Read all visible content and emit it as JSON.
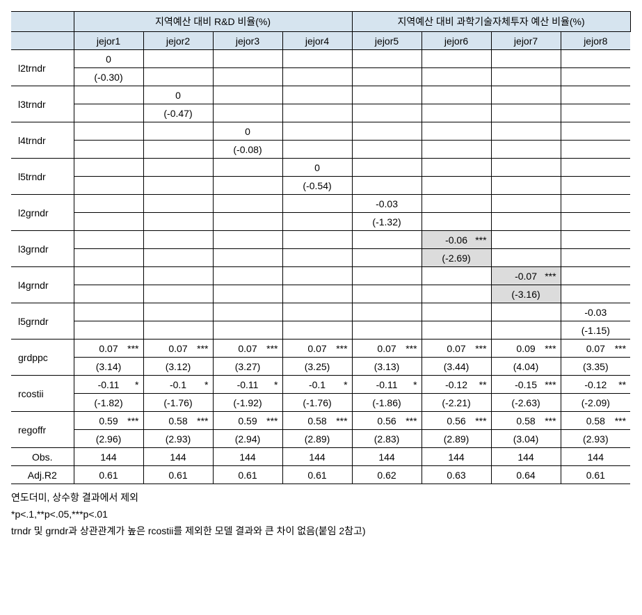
{
  "headers": {
    "group1": "지역예산 대비 R&D 비율(%)",
    "group2": "지역예산 대비 과학기술자체투자 예산 비율(%)",
    "cols": [
      "jejor1",
      "jejor2",
      "jejor3",
      "jejor4",
      "jejor5",
      "jejor6",
      "jejor7",
      "jejor8"
    ]
  },
  "rows": [
    {
      "label": "l2trndr",
      "cells": [
        {
          "v": "0",
          "t": "(-0.30)"
        },
        {},
        {},
        {},
        {},
        {},
        {},
        {}
      ]
    },
    {
      "label": "l3trndr",
      "cells": [
        {},
        {
          "v": "0",
          "t": "(-0.47)"
        },
        {},
        {},
        {},
        {},
        {},
        {}
      ]
    },
    {
      "label": "l4trndr",
      "cells": [
        {},
        {},
        {
          "v": "0",
          "t": "(-0.08)"
        },
        {},
        {},
        {},
        {},
        {}
      ]
    },
    {
      "label": "l5trndr",
      "cells": [
        {},
        {},
        {},
        {
          "v": "0",
          "t": "(-0.54)"
        },
        {},
        {},
        {},
        {}
      ]
    },
    {
      "label": "l2grndr",
      "cells": [
        {},
        {},
        {},
        {},
        {
          "v": "-0.03",
          "t": "(-1.32)"
        },
        {},
        {},
        {}
      ]
    },
    {
      "label": "l3grndr",
      "cells": [
        {},
        {},
        {},
        {},
        {},
        {
          "v": "-0.06",
          "sig": "***",
          "t": "(-2.69)",
          "hl": true
        },
        {},
        {}
      ]
    },
    {
      "label": "l4grndr",
      "cells": [
        {},
        {},
        {},
        {},
        {},
        {},
        {
          "v": "-0.07",
          "sig": "***",
          "t": "(-3.16)",
          "hl": true
        },
        {}
      ]
    },
    {
      "label": "l5grndr",
      "cells": [
        {},
        {},
        {},
        {},
        {},
        {},
        {},
        {
          "v": "-0.03",
          "t": "(-1.15)"
        }
      ]
    },
    {
      "label": "grdppc",
      "cells": [
        {
          "v": "0.07",
          "sig": "***",
          "t": "(3.14)"
        },
        {
          "v": "0.07",
          "sig": "***",
          "t": "(3.12)"
        },
        {
          "v": "0.07",
          "sig": "***",
          "t": "(3.27)"
        },
        {
          "v": "0.07",
          "sig": "***",
          "t": "(3.25)"
        },
        {
          "v": "0.07",
          "sig": "***",
          "t": "(3.13)"
        },
        {
          "v": "0.07",
          "sig": "***",
          "t": "(3.44)"
        },
        {
          "v": "0.09",
          "sig": "***",
          "t": "(4.04)"
        },
        {
          "v": "0.07",
          "sig": "***",
          "t": "(3.35)"
        }
      ]
    },
    {
      "label": "rcostii",
      "cells": [
        {
          "v": "-0.11",
          "sig": "*",
          "t": "(-1.82)"
        },
        {
          "v": "-0.1",
          "sig": "*",
          "t": "(-1.76)"
        },
        {
          "v": "-0.11",
          "sig": "*",
          "t": "(-1.92)"
        },
        {
          "v": "-0.1",
          "sig": "*",
          "t": "(-1.76)"
        },
        {
          "v": "-0.11",
          "sig": "*",
          "t": "(-1.86)"
        },
        {
          "v": "-0.12",
          "sig": "**",
          "t": "(-2.21)"
        },
        {
          "v": "-0.15",
          "sig": "***",
          "t": "(-2.63)"
        },
        {
          "v": "-0.12",
          "sig": "**",
          "t": "(-2.09)"
        }
      ]
    },
    {
      "label": "regoffr",
      "cells": [
        {
          "v": "0.59",
          "sig": "***",
          "t": "(2.96)"
        },
        {
          "v": "0.58",
          "sig": "***",
          "t": "(2.93)"
        },
        {
          "v": "0.59",
          "sig": "***",
          "t": "(2.94)"
        },
        {
          "v": "0.58",
          "sig": "***",
          "t": "(2.89)"
        },
        {
          "v": "0.56",
          "sig": "***",
          "t": "(2.83)"
        },
        {
          "v": "0.56",
          "sig": "***",
          "t": "(2.89)"
        },
        {
          "v": "0.58",
          "sig": "***",
          "t": "(3.04)"
        },
        {
          "v": "0.58",
          "sig": "***",
          "t": "(2.93)"
        }
      ]
    }
  ],
  "singleRows": [
    {
      "label": "Obs.",
      "vals": [
        "144",
        "144",
        "144",
        "144",
        "144",
        "144",
        "144",
        "144"
      ]
    },
    {
      "label": "Adj.R2",
      "vals": [
        "0.61",
        "0.61",
        "0.61",
        "0.61",
        "0.62",
        "0.63",
        "0.64",
        "0.61"
      ]
    }
  ],
  "footnotes": [
    "연도더미, 상수항 결과에서 제외",
    "*p<.1,**p<.05,***p<.01",
    "trndr 및 grndr과 상관관계가 높은 rcostii를 제외한 모델 결과와 큰 차이 없음(붙임 2참고)"
  ],
  "style": {
    "header_bg": "#d6e4ef",
    "highlight_bg": "#dcdcdc",
    "border_color": "#000000",
    "font_size": 14
  }
}
